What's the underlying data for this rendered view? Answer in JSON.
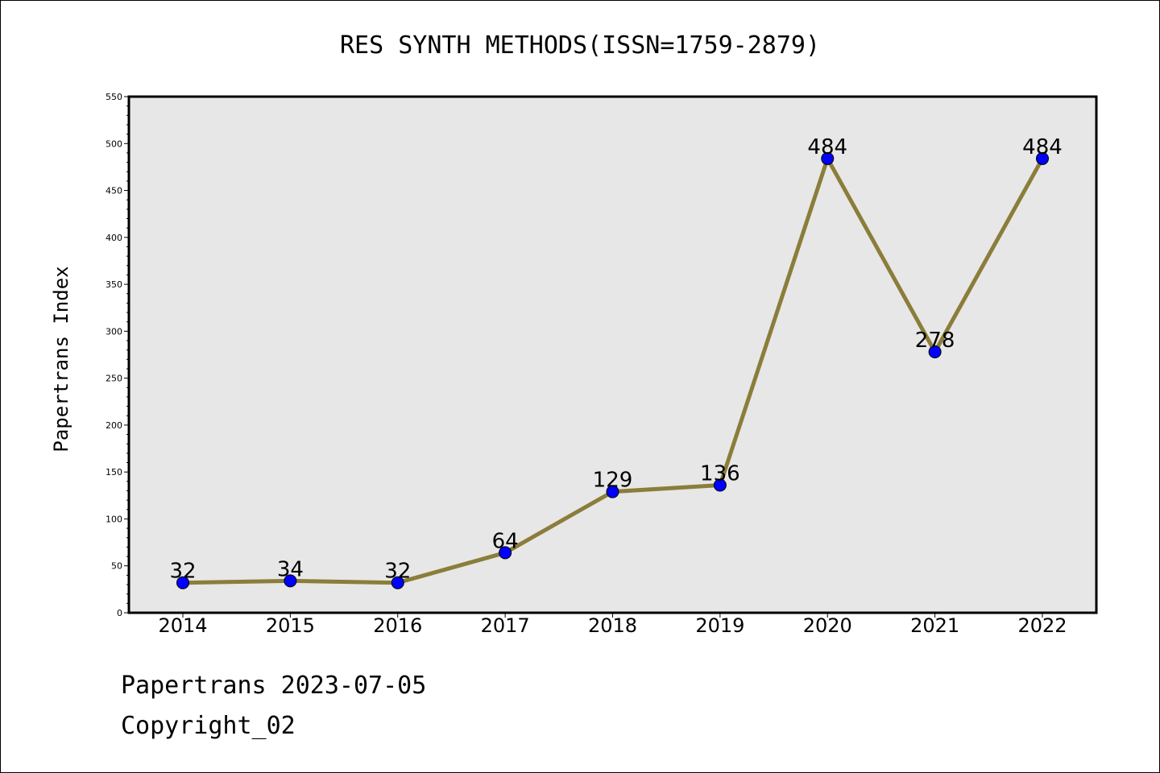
{
  "chart_data": {
    "type": "line",
    "title": "RES SYNTH METHODS(ISSN=1759-2879)",
    "xlabel": "",
    "ylabel": "Papertrans Index",
    "categories": [
      "2014",
      "2015",
      "2016",
      "2017",
      "2018",
      "2019",
      "2020",
      "2021",
      "2022"
    ],
    "values": [
      32,
      34,
      32,
      64,
      129,
      136,
      484,
      278,
      484
    ],
    "data_labels": [
      "32",
      "34",
      "32",
      "64",
      "129",
      "136",
      "484",
      "278",
      "484"
    ],
    "ylim": [
      0,
      550
    ],
    "yticks": [
      0,
      50,
      100,
      150,
      200,
      250,
      300,
      350,
      400,
      450,
      500,
      550
    ],
    "grid": false,
    "legend": "none",
    "colors": {
      "line": "#8B7D3A",
      "marker": "#0000FF",
      "plot_background": "#E7E7E7"
    }
  },
  "footer": {
    "date_line": "Papertrans 2023-07-05",
    "copyright_line": "Copyright_02"
  }
}
